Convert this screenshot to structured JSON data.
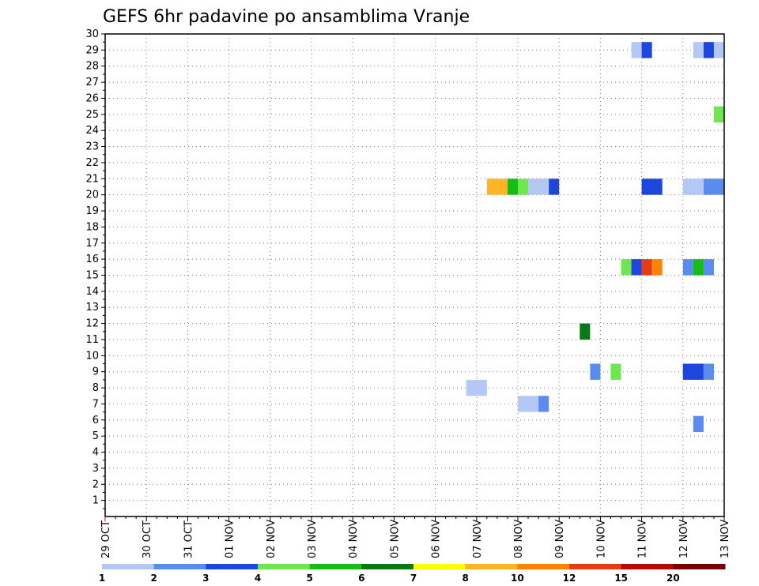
{
  "chart_data": {
    "type": "heatmap",
    "title": "GEFS 6hr padavine po ansamblima Vranje",
    "xlabel": "",
    "ylabel": "",
    "x_ticks": [
      "29 OCT",
      "30 OCT",
      "31 OCT",
      "01 NOV",
      "02 NOV",
      "03 NOV",
      "04 NOV",
      "05 NOV",
      "06 NOV",
      "07 NOV",
      "08 NOV",
      "09 NOV",
      "10 NOV",
      "11 NOV",
      "12 NOV",
      "13 NOV"
    ],
    "y_ticks": [
      1,
      2,
      3,
      4,
      5,
      6,
      7,
      8,
      9,
      10,
      11,
      12,
      13,
      14,
      15,
      16,
      17,
      18,
      19,
      20,
      21,
      22,
      23,
      24,
      25,
      26,
      27,
      28,
      29,
      30
    ],
    "x_range_days": [
      0,
      15
    ],
    "y_range": [
      0,
      30
    ],
    "grid": true,
    "colorbar": {
      "labels": [
        "1",
        "2",
        "3",
        "4",
        "5",
        "6",
        "7",
        "8",
        "10",
        "12",
        "15",
        "20"
      ],
      "colors": [
        "#b4c8f5",
        "#5a8cf0",
        "#1e46dc",
        "#6ee650",
        "#14be14",
        "#0a7814",
        "#ffff00",
        "#ffb428",
        "#ff8200",
        "#e63c14",
        "#b40a0a",
        "#780000"
      ]
    },
    "cells": [
      {
        "member": 29,
        "start": "10 NOV 18Z",
        "end": "11 NOV 00Z",
        "bin": 0
      },
      {
        "member": 29,
        "start": "11 NOV 00Z",
        "end": "11 NOV 06Z",
        "bin": 2
      },
      {
        "member": 29,
        "start": "12 NOV 06Z",
        "end": "12 NOV 12Z",
        "bin": 0
      },
      {
        "member": 29,
        "start": "12 NOV 12Z",
        "end": "12 NOV 18Z",
        "bin": 2
      },
      {
        "member": 29,
        "start": "12 NOV 18Z",
        "end": "13 NOV 00Z",
        "bin": 0
      },
      {
        "member": 25,
        "start": "12 NOV 18Z",
        "end": "13 NOV 00Z",
        "bin": 3
      },
      {
        "member": 20.5,
        "start": "07 NOV 06Z",
        "end": "07 NOV 18Z",
        "bin": 7
      },
      {
        "member": 20.5,
        "start": "07 NOV 18Z",
        "end": "08 NOV 00Z",
        "bin": 4
      },
      {
        "member": 20.5,
        "start": "08 NOV 00Z",
        "end": "08 NOV 06Z",
        "bin": 3
      },
      {
        "member": 20.5,
        "start": "08 NOV 06Z",
        "end": "08 NOV 18Z",
        "bin": 0
      },
      {
        "member": 20.5,
        "start": "08 NOV 18Z",
        "end": "09 NOV 00Z",
        "bin": 2
      },
      {
        "member": 20.5,
        "start": "11 NOV 00Z",
        "end": "11 NOV 12Z",
        "bin": 2
      },
      {
        "member": 20.5,
        "start": "12 NOV 00Z",
        "end": "12 NOV 12Z",
        "bin": 0
      },
      {
        "member": 20.5,
        "start": "12 NOV 12Z",
        "end": "13 NOV 00Z",
        "bin": 1
      },
      {
        "member": 15.5,
        "start": "10 NOV 12Z",
        "end": "10 NOV 18Z",
        "bin": 3
      },
      {
        "member": 15.5,
        "start": "10 NOV 18Z",
        "end": "11 NOV 00Z",
        "bin": 2
      },
      {
        "member": 15.5,
        "start": "11 NOV 00Z",
        "end": "11 NOV 06Z",
        "bin": 9
      },
      {
        "member": 15.5,
        "start": "11 NOV 06Z",
        "end": "11 NOV 12Z",
        "bin": 8
      },
      {
        "member": 15.5,
        "start": "12 NOV 00Z",
        "end": "12 NOV 06Z",
        "bin": 1
      },
      {
        "member": 15.5,
        "start": "12 NOV 06Z",
        "end": "12 NOV 12Z",
        "bin": 4
      },
      {
        "member": 15.5,
        "start": "12 NOV 12Z",
        "end": "12 NOV 18Z",
        "bin": 1
      },
      {
        "member": 11.5,
        "start": "09 NOV 12Z",
        "end": "09 NOV 18Z",
        "bin": 5
      },
      {
        "member": 9,
        "start": "09 NOV 18Z",
        "end": "10 NOV 00Z",
        "bin": 1
      },
      {
        "member": 9,
        "start": "10 NOV 06Z",
        "end": "10 NOV 12Z",
        "bin": 3
      },
      {
        "member": 9,
        "start": "12 NOV 00Z",
        "end": "12 NOV 12Z",
        "bin": 2
      },
      {
        "member": 9,
        "start": "12 NOV 12Z",
        "end": "12 NOV 18Z",
        "bin": 1
      },
      {
        "member": 8,
        "start": "06 NOV 18Z",
        "end": "07 NOV 06Z",
        "bin": 0
      },
      {
        "member": 7,
        "start": "08 NOV 00Z",
        "end": "08 NOV 12Z",
        "bin": 0
      },
      {
        "member": 7,
        "start": "08 NOV 12Z",
        "end": "08 NOV 18Z",
        "bin": 1
      },
      {
        "member": 5.75,
        "start": "12 NOV 06Z",
        "end": "12 NOV 12Z",
        "bin": 1
      }
    ]
  }
}
